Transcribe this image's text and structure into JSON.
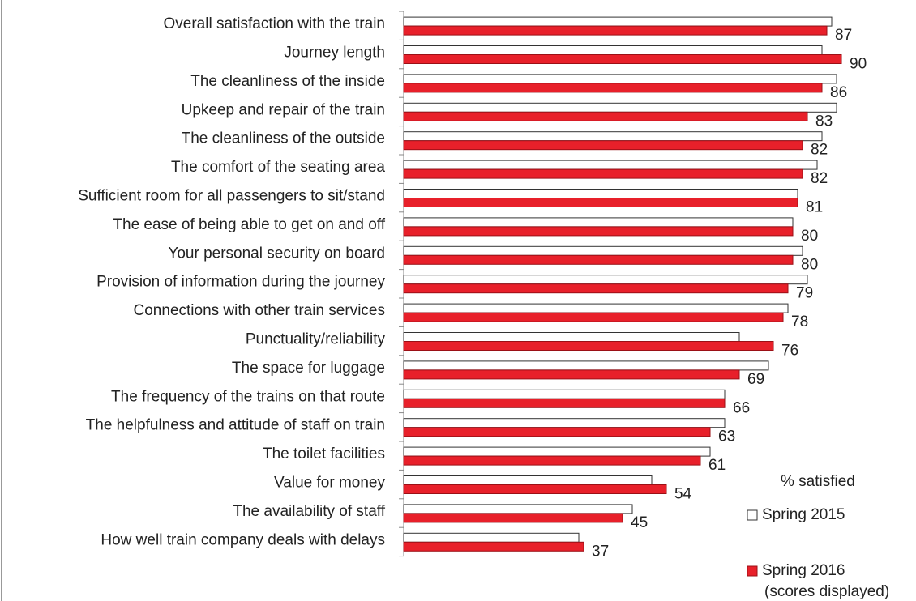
{
  "chart_data": {
    "type": "hbar",
    "categories": [
      "Overall satisfaction with the train",
      "Journey length",
      "The cleanliness of the inside",
      "Upkeep and repair of the train",
      "The cleanliness of the outside",
      "The comfort of the seating area",
      "Sufficient room for all passengers to sit/stand",
      "The ease of being able to get on and off",
      "Your personal security on board",
      "Provision of information during the journey",
      "Connections with other train services",
      "Punctuality/reliability",
      "The space for luggage",
      "The frequency of the trains on that route",
      "The helpfulness and attitude of staff on train",
      "The toilet facilities",
      "Value for money",
      "The availability of staff",
      "How well train company deals with delays"
    ],
    "series": [
      {
        "name": "Spring 2015",
        "color": "#ffffff",
        "values": [
          88,
          86,
          89,
          89,
          86,
          85,
          81,
          80,
          82,
          83,
          79,
          69,
          75,
          66,
          66,
          63,
          51,
          47,
          36
        ]
      },
      {
        "name": "Spring 2016",
        "color": "#e8202a",
        "values": [
          87,
          90,
          86,
          83,
          82,
          82,
          81,
          80,
          80,
          79,
          78,
          76,
          69,
          66,
          63,
          61,
          54,
          45,
          37
        ]
      }
    ],
    "legend_title": "% satisfied",
    "legend_note": "(scores displayed)",
    "xlim": [
      0,
      100
    ]
  }
}
